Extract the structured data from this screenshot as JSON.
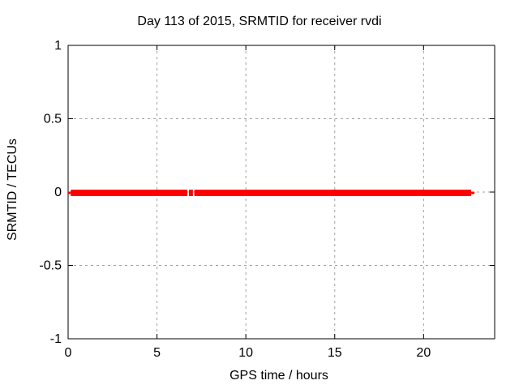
{
  "chart_data": {
    "type": "scatter",
    "title": "Day 113 of 2015, SRMTID for receiver rvdi",
    "xlabel": "GPS time / hours",
    "ylabel": "SRMTID / TECUs",
    "xlim": [
      0,
      24
    ],
    "ylim": [
      -1,
      1
    ],
    "xticks": [
      0,
      5,
      10,
      15,
      20
    ],
    "xtick_labels": [
      "0",
      "5",
      "10",
      "15",
      "20"
    ],
    "yticks": [
      -1,
      -0.5,
      0,
      0.5,
      1
    ],
    "ytick_labels": [
      "-1",
      "-0.5",
      "0",
      "0.5",
      "1"
    ],
    "grid": true,
    "legend": "none",
    "marker": "plus",
    "series": [
      {
        "name": "SRMTID",
        "color": "#ff0000",
        "y_value": 0,
        "x_segments": [
          {
            "start": 0.15,
            "end": 6.71
          },
          {
            "start": 6.8,
            "end": 7.02
          },
          {
            "start": 7.1,
            "end": 22.68
          }
        ],
        "data_gap_hours": [
          6.71,
          7.1
        ]
      }
    ],
    "colors": {
      "series": "#ff0000",
      "grid": "#a0a0a0",
      "border": "#000000",
      "background": "#ffffff",
      "text": "#000000"
    }
  }
}
